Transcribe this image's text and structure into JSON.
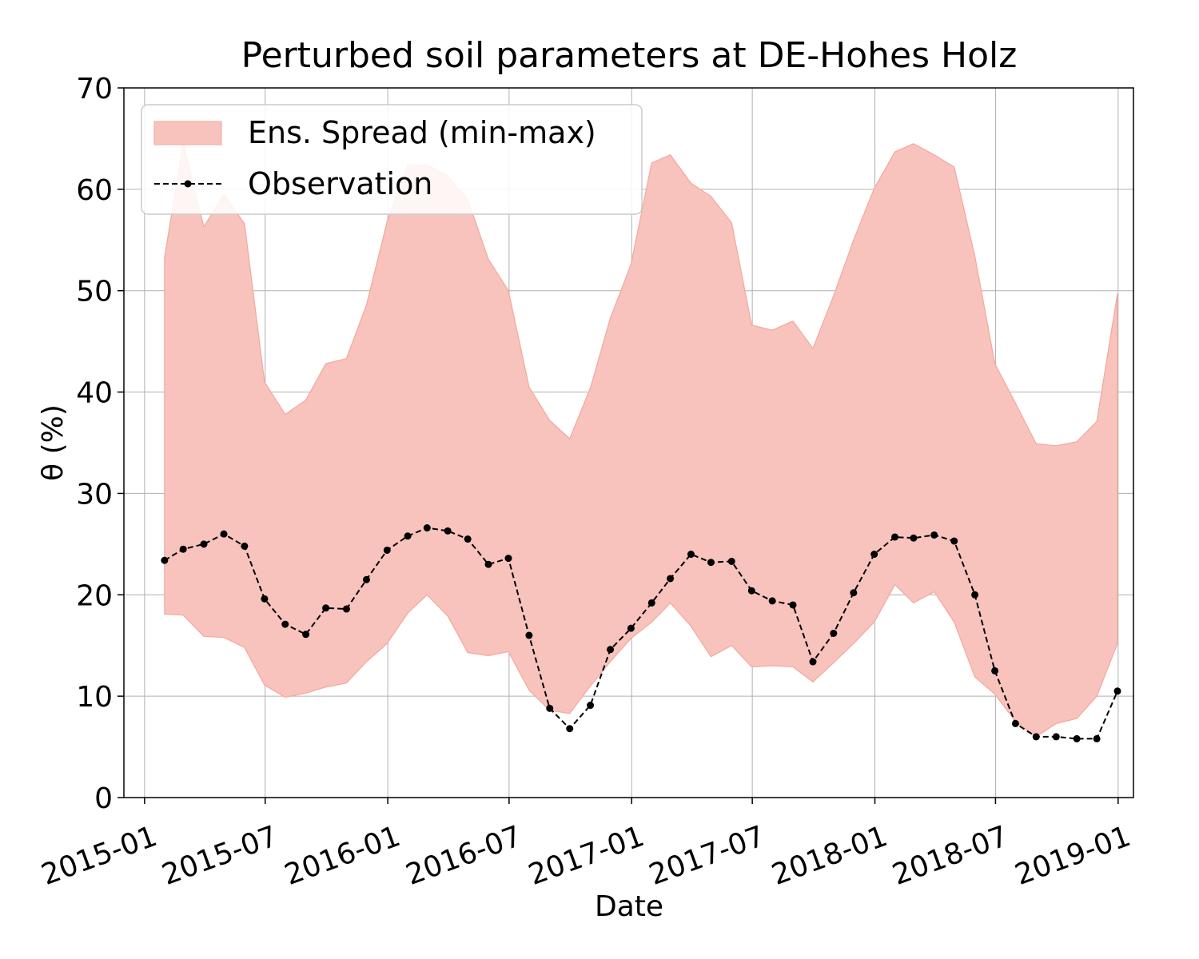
{
  "chart_data": {
    "type": "area",
    "title": "Perturbed soil parameters at DE-Hohes Holz",
    "xlabel": "Date",
    "ylabel": "θ  (%)",
    "ylim": [
      0,
      70
    ],
    "xlim": [
      "2014-12-01",
      "2019-01-24"
    ],
    "grid": true,
    "legend_position": "top-left",
    "x_ticks": [
      "2015-01",
      "2015-07",
      "2016-01",
      "2016-07",
      "2017-01",
      "2017-07",
      "2018-01",
      "2018-07",
      "2019-01"
    ],
    "y_ticks": [
      0,
      10,
      20,
      30,
      40,
      50,
      60,
      70
    ],
    "colors": {
      "band": "#f8c3bc",
      "band_edge": "#f4a79d",
      "observation": "#000000"
    },
    "x": [
      "2015-01-31",
      "2015-02-28",
      "2015-03-31",
      "2015-04-30",
      "2015-05-31",
      "2015-06-30",
      "2015-07-31",
      "2015-08-31",
      "2015-09-30",
      "2015-10-31",
      "2015-11-30",
      "2015-12-31",
      "2016-01-31",
      "2016-02-29",
      "2016-03-31",
      "2016-04-30",
      "2016-05-31",
      "2016-06-30",
      "2016-07-31",
      "2016-08-31",
      "2016-09-30",
      "2016-10-31",
      "2016-11-30",
      "2016-12-31",
      "2017-01-31",
      "2017-02-28",
      "2017-03-31",
      "2017-04-30",
      "2017-05-31",
      "2017-06-30",
      "2017-07-31",
      "2017-08-31",
      "2017-09-30",
      "2017-10-31",
      "2017-11-30",
      "2017-12-31",
      "2018-01-31",
      "2018-02-28",
      "2018-03-31",
      "2018-04-30",
      "2018-05-31",
      "2018-06-30",
      "2018-07-31",
      "2018-08-31",
      "2018-09-30",
      "2018-10-31",
      "2018-11-30",
      "2018-12-31"
    ],
    "series": [
      {
        "name": "Ens. Spread (min-max)",
        "type": "band",
        "upper": [
          53.3,
          64.5,
          56.3,
          59.5,
          56.6,
          41.0,
          37.8,
          39.2,
          42.8,
          43.3,
          48.6,
          56.8,
          62.4,
          62.4,
          61.3,
          59.0,
          53.1,
          50.0,
          40.5,
          37.2,
          35.4,
          40.4,
          47.3,
          52.6,
          62.6,
          63.4,
          60.6,
          59.3,
          56.7,
          46.6,
          46.1,
          47.0,
          44.3,
          49.5,
          55.0,
          60.1,
          63.7,
          64.5,
          63.4,
          62.2,
          53.4,
          42.8,
          38.9,
          34.9,
          34.7,
          35.1,
          37.1,
          49.7
        ],
        "lower": [
          18.1,
          18.0,
          15.9,
          15.8,
          14.8,
          11.1,
          9.9,
          10.3,
          10.9,
          11.3,
          13.4,
          15.2,
          18.2,
          20.0,
          17.9,
          14.3,
          14.0,
          14.4,
          10.6,
          8.6,
          8.3,
          11.0,
          13.4,
          15.7,
          17.3,
          19.2,
          16.9,
          13.9,
          15.0,
          12.9,
          13.0,
          12.9,
          11.4,
          13.3,
          15.2,
          17.3,
          21.0,
          19.2,
          20.3,
          17.3,
          11.9,
          10.2,
          7.5,
          6.0,
          7.3,
          7.8,
          10.0,
          15.2
        ]
      },
      {
        "name": "Observation",
        "type": "line",
        "values": [
          23.4,
          24.5,
          25.0,
          26.0,
          24.8,
          19.6,
          17.1,
          16.1,
          18.7,
          18.6,
          21.5,
          24.4,
          25.8,
          26.6,
          26.3,
          25.5,
          23.0,
          23.6,
          16.0,
          8.8,
          6.8,
          9.1,
          14.6,
          16.7,
          19.2,
          21.6,
          24.0,
          23.2,
          23.3,
          20.4,
          19.4,
          19.0,
          13.4,
          16.2,
          20.2,
          24.0,
          25.7,
          25.6,
          25.9,
          25.3,
          20.0,
          12.5,
          7.3,
          6.0,
          6.0,
          5.8,
          5.8,
          10.5
        ]
      }
    ]
  }
}
